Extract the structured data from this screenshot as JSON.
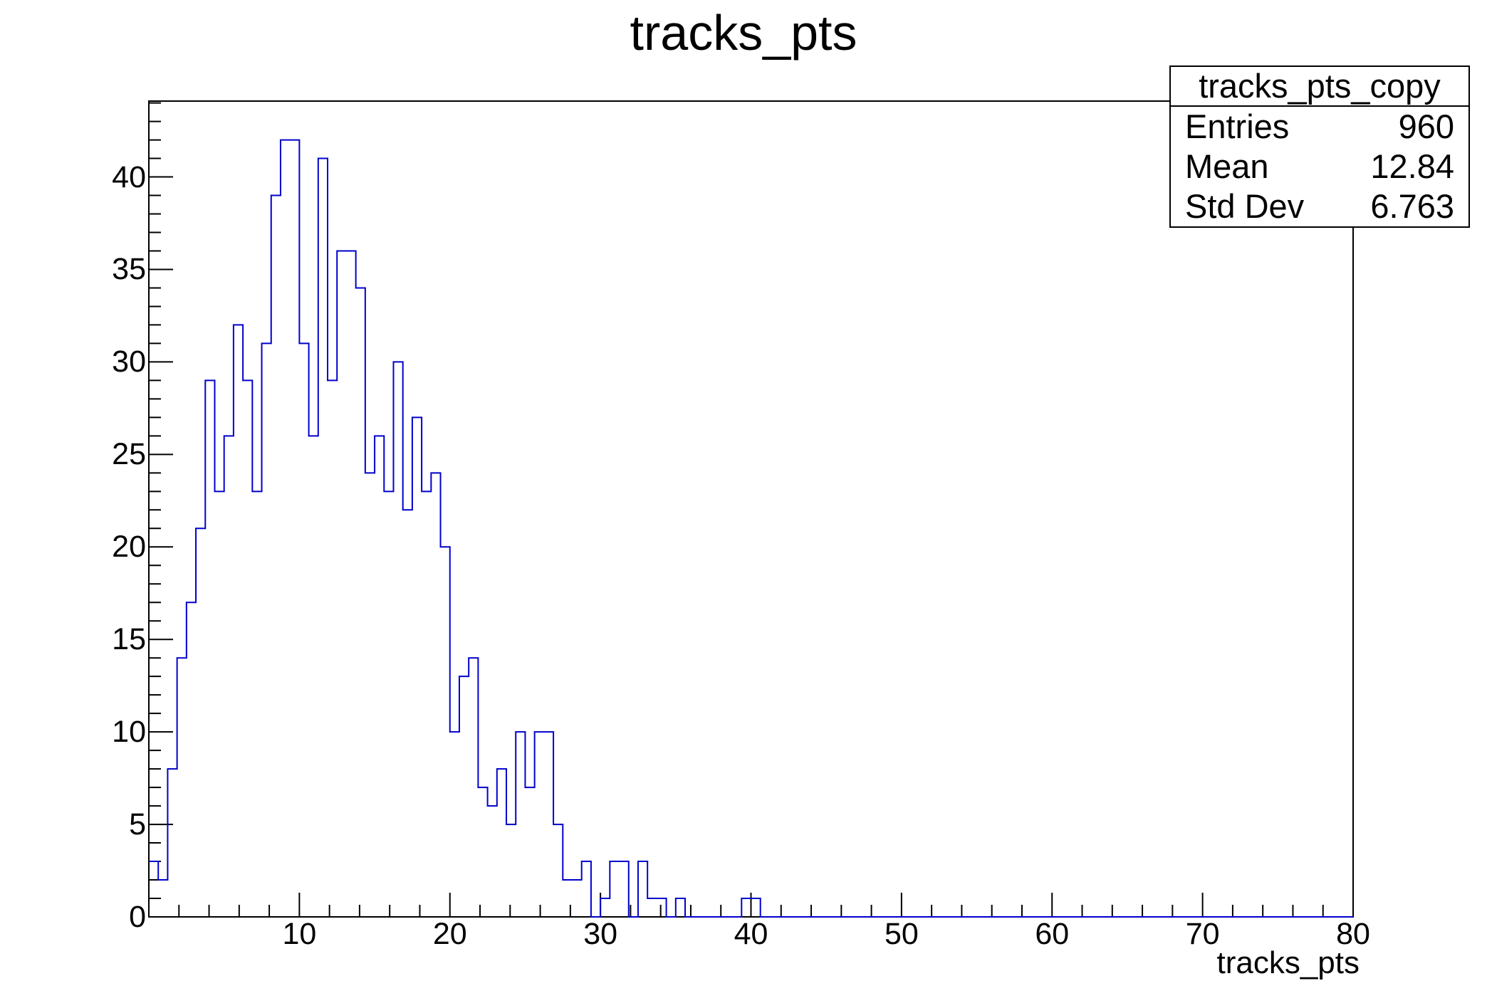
{
  "title": "tracks_pts",
  "stats_box": {
    "name": "tracks_pts_copy",
    "rows": [
      {
        "label": "Entries",
        "value": "960"
      },
      {
        "label": "Mean",
        "value": "12.84"
      },
      {
        "label": "Std Dev",
        "value": "6.763"
      }
    ]
  },
  "colors": {
    "histogram_line": "#0000cc",
    "frame": "#000000"
  },
  "chart_data": {
    "type": "bar",
    "histogram": true,
    "title": "tracks_pts",
    "xlabel": "tracks_pts",
    "ylabel": "",
    "xlim": [
      0,
      80
    ],
    "ylim": [
      0,
      44.1
    ],
    "bin_width": 0.625,
    "x_ticks": [
      10,
      20,
      30,
      40,
      50,
      60,
      70,
      80
    ],
    "y_ticks": [
      0,
      5,
      10,
      15,
      20,
      25,
      30,
      35,
      40
    ],
    "values": [
      3,
      2,
      8,
      14,
      17,
      21,
      29,
      23,
      26,
      32,
      29,
      23,
      31,
      39,
      42,
      42,
      31,
      26,
      41,
      29,
      36,
      36,
      34,
      24,
      26,
      23,
      30,
      22,
      27,
      23,
      24,
      20,
      10,
      13,
      14,
      7,
      6,
      8,
      5,
      10,
      7,
      10,
      10,
      5,
      2,
      2,
      3,
      0,
      1,
      3,
      3,
      0,
      3,
      1,
      1,
      0,
      1,
      0,
      0,
      0,
      0,
      0,
      0,
      1,
      1,
      0,
      0,
      0,
      0,
      0,
      0,
      0,
      0,
      0,
      0,
      0,
      0,
      0,
      0,
      0,
      0,
      0,
      0,
      0,
      0,
      0,
      0,
      0,
      0,
      0,
      0,
      0,
      0,
      0,
      0,
      0,
      0,
      0,
      0,
      0,
      0,
      0,
      0,
      0,
      0,
      0,
      0,
      0,
      0,
      0,
      0,
      0,
      0,
      0,
      0,
      0,
      0,
      0,
      0,
      0,
      0,
      0,
      0,
      0,
      0,
      0,
      0,
      0
    ]
  }
}
